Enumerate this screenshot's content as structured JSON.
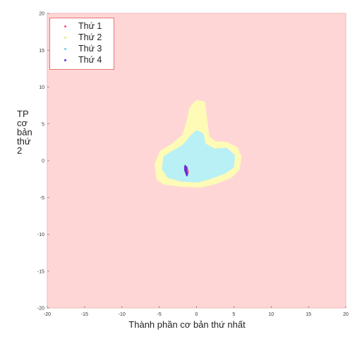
{
  "chart_data": {
    "type": "scatter",
    "xlabel": "Thành phần cơ bản thứ nhất",
    "ylabel_lines": [
      "TP",
      "cơ",
      "bản",
      "thứ",
      "2"
    ],
    "xlim": [
      -20,
      20
    ],
    "ylim": [
      -20,
      20
    ],
    "x_ticks": [
      -20,
      -15,
      -10,
      -5,
      0,
      5,
      10,
      15,
      20
    ],
    "y_ticks": [
      -20,
      -15,
      -10,
      -5,
      0,
      5,
      10,
      15,
      20
    ],
    "grid": false,
    "legend_position": "top-left",
    "background_color": "#ffd6d6",
    "series": [
      {
        "name": "Thứ 1",
        "color": "#ff4d6d",
        "region_color": "#ffd6d6",
        "points": [
          [
            -1.3,
            -1.1
          ],
          [
            -1.2,
            -1.5
          ]
        ]
      },
      {
        "name": "Thứ 2",
        "color": "#e8e86b",
        "region_color": "#fdfbb6",
        "region": [
          [
            -4.4,
            -3.1
          ],
          [
            -5.2,
            -2.5
          ],
          [
            -5.5,
            -0.5
          ],
          [
            -4.8,
            1.2
          ],
          [
            -3.2,
            2.2
          ],
          [
            -1.8,
            3.4
          ],
          [
            -1.2,
            5.3
          ],
          [
            -0.8,
            7.2
          ],
          [
            0,
            8.1
          ],
          [
            1.0,
            7.9
          ],
          [
            1.3,
            5.5
          ],
          [
            1.6,
            3.2
          ],
          [
            2.5,
            2.5
          ],
          [
            4.0,
            2.4
          ],
          [
            5.4,
            1.7
          ],
          [
            5.9,
            0.5
          ],
          [
            5.6,
            -1.2
          ],
          [
            4.6,
            -2.2
          ],
          [
            2.6,
            -3.0
          ],
          [
            0.6,
            -3.5
          ],
          [
            -2.0,
            -3.4
          ]
        ]
      },
      {
        "name": "Thứ 3",
        "color": "#5fd4e8",
        "region_color": "#b8f0f5",
        "region": [
          [
            -3.8,
            -2.2
          ],
          [
            -4.5,
            -1.1
          ],
          [
            -4.3,
            0.5
          ],
          [
            -3.2,
            1.2
          ],
          [
            -1.8,
            2.0
          ],
          [
            -0.8,
            3.2
          ],
          [
            0,
            4.0
          ],
          [
            0.8,
            3.6
          ],
          [
            1.1,
            2.2
          ],
          [
            2.4,
            1.5
          ],
          [
            4.0,
            1.6
          ],
          [
            5.0,
            0.7
          ],
          [
            4.9,
            -0.8
          ],
          [
            3.8,
            -1.6
          ],
          [
            2.0,
            -2.3
          ],
          [
            0.2,
            -2.8
          ],
          [
            -2.0,
            -2.7
          ]
        ]
      },
      {
        "name": "Thứ 4",
        "color": "#6a2bd9",
        "region_color": "#b8f0f5",
        "points": [
          [
            -1.5,
            -0.9
          ],
          [
            -1.5,
            -1.2
          ],
          [
            -1.4,
            -1.5
          ],
          [
            -1.3,
            -1.8
          ],
          [
            -1.4,
            -1.1
          ]
        ]
      }
    ]
  }
}
